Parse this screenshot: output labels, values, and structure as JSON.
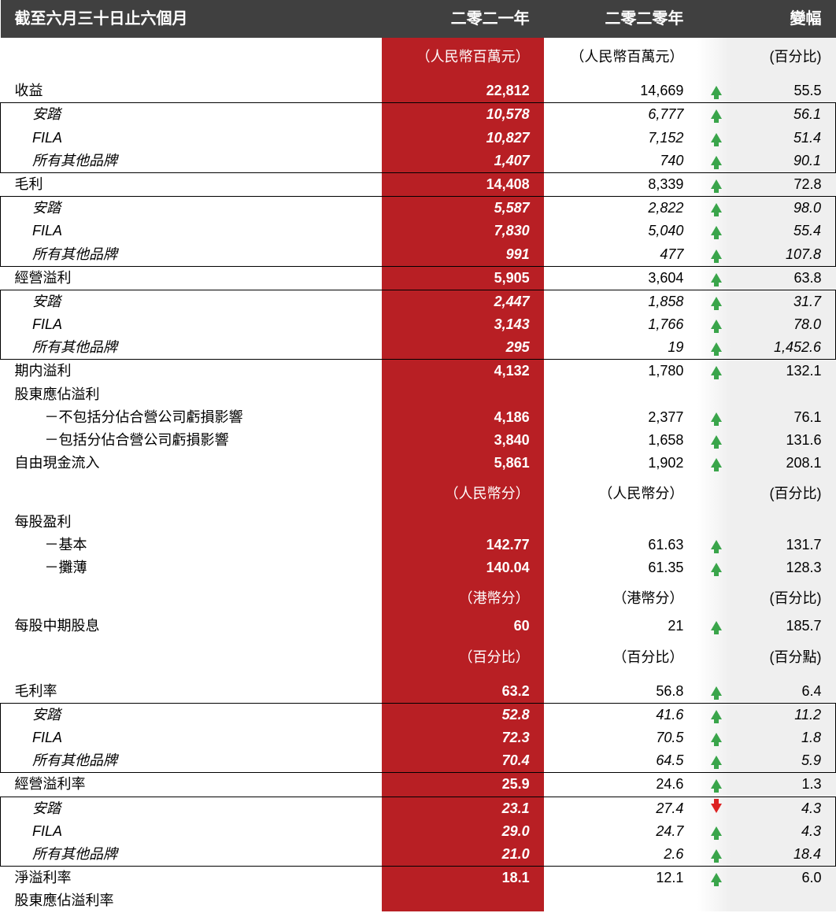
{
  "header": {
    "period_label": "截至六月三十日止六個月",
    "col_2021": "二零二一年",
    "col_2020": "二零二零年",
    "col_change": "變幅"
  },
  "units": {
    "rmb_million_2021": "（人民幣百萬元）",
    "rmb_million_2020": "（人民幣百萬元）",
    "pct": "(百分比)",
    "rmb_cents_2021": "（人民幣分）",
    "rmb_cents_2020": "（人民幣分）",
    "hkd_cents_2021": "（港幣分）",
    "hkd_cents_2020": "（港幣分）",
    "pct_2021": "（百分比）",
    "pct_2020": "（百分比）",
    "pct_points": "(百分點)"
  },
  "rows": {
    "revenue": {
      "label": "收益",
      "y2021": "22,812",
      "y2020": "14,669",
      "dir": "up",
      "chg": "55.5"
    },
    "revenue_anta": {
      "label": "安踏",
      "y2021": "10,578",
      "y2020": "6,777",
      "dir": "up",
      "chg": "56.1"
    },
    "revenue_fila": {
      "label": "FILA",
      "y2021": "10,827",
      "y2020": "7,152",
      "dir": "up",
      "chg": "51.4"
    },
    "revenue_other": {
      "label": "所有其他品牌",
      "y2021": "1,407",
      "y2020": "740",
      "dir": "up",
      "chg": "90.1"
    },
    "gp": {
      "label": "毛利",
      "y2021": "14,408",
      "y2020": "8,339",
      "dir": "up",
      "chg": "72.8"
    },
    "gp_anta": {
      "label": "安踏",
      "y2021": "5,587",
      "y2020": "2,822",
      "dir": "up",
      "chg": "98.0"
    },
    "gp_fila": {
      "label": "FILA",
      "y2021": "7,830",
      "y2020": "5,040",
      "dir": "up",
      "chg": "55.4"
    },
    "gp_other": {
      "label": "所有其他品牌",
      "y2021": "991",
      "y2020": "477",
      "dir": "up",
      "chg": "107.8"
    },
    "op": {
      "label": "經營溢利",
      "y2021": "5,905",
      "y2020": "3,604",
      "dir": "up",
      "chg": "63.8"
    },
    "op_anta": {
      "label": "安踏",
      "y2021": "2,447",
      "y2020": "1,858",
      "dir": "up",
      "chg": "31.7"
    },
    "op_fila": {
      "label": "FILA",
      "y2021": "3,143",
      "y2020": "1,766",
      "dir": "up",
      "chg": "78.0"
    },
    "op_other": {
      "label": "所有其他品牌",
      "y2021": "295",
      "y2020": "19",
      "dir": "up",
      "chg": "1,452.6"
    },
    "period_profit": {
      "label": "期内溢利",
      "y2021": "4,132",
      "y2020": "1,780",
      "dir": "up",
      "chg": "132.1"
    },
    "equity_profit": {
      "label": "股東應佔溢利",
      "y2021": "",
      "y2020": "",
      "dir": "",
      "chg": ""
    },
    "excl_jv": {
      "label": "－不包括分佔合營公司虧損影響",
      "y2021": "4,186",
      "y2020": "2,377",
      "dir": "up",
      "chg": "76.1"
    },
    "incl_jv": {
      "label": "－包括分佔合營公司虧損影響",
      "y2021": "3,840",
      "y2020": "1,658",
      "dir": "up",
      "chg": "131.6"
    },
    "fcf": {
      "label": "自由現金流入",
      "y2021": "5,861",
      "y2020": "1,902",
      "dir": "up",
      "chg": "208.1"
    },
    "eps": {
      "label": "每股盈利",
      "y2021": "",
      "y2020": "",
      "dir": "",
      "chg": ""
    },
    "eps_basic": {
      "label": "－基本",
      "y2021": "142.77",
      "y2020": "61.63",
      "dir": "up",
      "chg": "131.7"
    },
    "eps_diluted": {
      "label": "－攤薄",
      "y2021": "140.04",
      "y2020": "61.35",
      "dir": "up",
      "chg": "128.3"
    },
    "dividend": {
      "label": "每股中期股息",
      "y2021": "60",
      "y2020": "21",
      "dir": "up",
      "chg": "185.7"
    },
    "gpm": {
      "label": "毛利率",
      "y2021": "63.2",
      "y2020": "56.8",
      "dir": "up",
      "chg": "6.4"
    },
    "gpm_anta": {
      "label": "安踏",
      "y2021": "52.8",
      "y2020": "41.6",
      "dir": "up",
      "chg": "11.2"
    },
    "gpm_fila": {
      "label": "FILA",
      "y2021": "72.3",
      "y2020": "70.5",
      "dir": "up",
      "chg": "1.8"
    },
    "gpm_other": {
      "label": "所有其他品牌",
      "y2021": "70.4",
      "y2020": "64.5",
      "dir": "up",
      "chg": "5.9"
    },
    "opm": {
      "label": "經營溢利率",
      "y2021": "25.9",
      "y2020": "24.6",
      "dir": "up",
      "chg": "1.3"
    },
    "opm_anta": {
      "label": "安踏",
      "y2021": "23.1",
      "y2020": "27.4",
      "dir": "down",
      "chg": "4.3"
    },
    "opm_fila": {
      "label": "FILA",
      "y2021": "29.0",
      "y2020": "24.7",
      "dir": "up",
      "chg": "4.3"
    },
    "opm_other": {
      "label": "所有其他品牌",
      "y2021": "21.0",
      "y2020": "2.6",
      "dir": "up",
      "chg": "18.4"
    },
    "npm": {
      "label": "淨溢利率",
      "y2021": "18.1",
      "y2020": "12.1",
      "dir": "up",
      "chg": "6.0"
    },
    "equity_margin": {
      "label": "股東應佔溢利率",
      "y2021": "",
      "y2020": "",
      "dir": "",
      "chg": ""
    }
  },
  "colors": {
    "header_bg": "#404040",
    "red_col": "#b81f24",
    "change_bg": "#efefef",
    "arrow_up": "#3aa54b",
    "arrow_down": "#d22"
  }
}
